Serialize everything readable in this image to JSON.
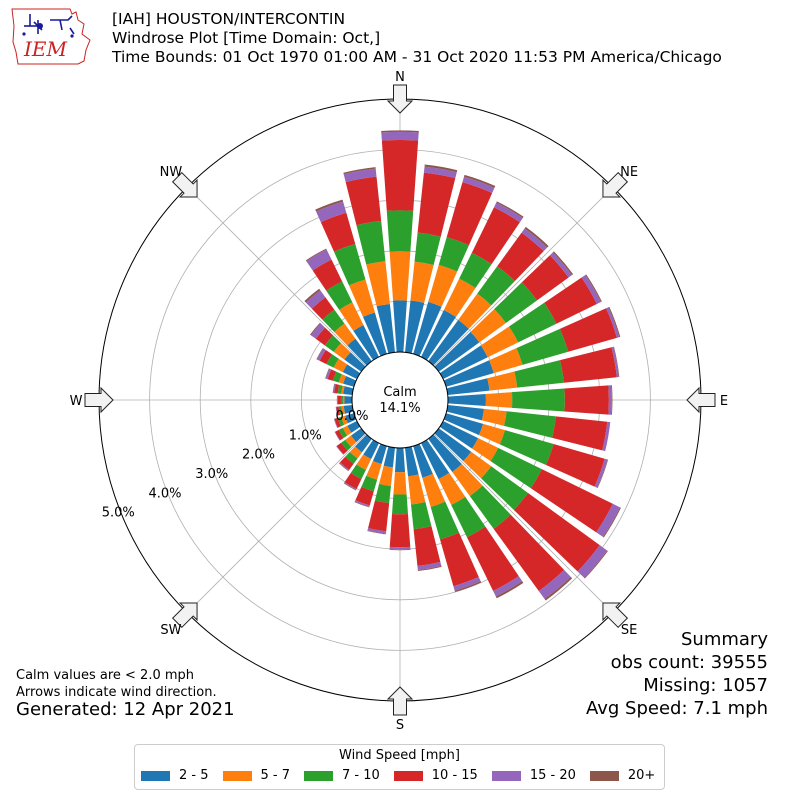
{
  "logo": {
    "text": "IEM"
  },
  "header": {
    "line1": "[IAH] HOUSTON/INTERCONTIN",
    "line2": "Windrose Plot [Time Domain: Oct,]",
    "line3": "Time Bounds: 01 Oct 1970 01:00 AM - 31 Oct 2020 11:53 PM America/Chicago"
  },
  "notes": {
    "calm_note": "Calm values are < 2.0 mph",
    "arrow_note": "Arrows indicate wind direction.",
    "generated": "Generated: 12 Apr 2021"
  },
  "summary": {
    "title": "Summary",
    "obs_count": "obs count: 39555",
    "missing": "Missing: 1057",
    "avg_speed": "Avg Speed: 7.1 mph"
  },
  "colors": {
    "bins": [
      "#1f77b4",
      "#ff7f0e",
      "#2ca02c",
      "#d62728",
      "#9467bd",
      "#8c564b"
    ],
    "grid": "#b0b0b0",
    "arrow_fill": "#f2f2f2"
  },
  "chart_data": {
    "type": "windrose",
    "calm": {
      "label": "Calm",
      "value": "14.1%"
    },
    "directions": [
      "N",
      "NE",
      "E",
      "SE",
      "S",
      "SW",
      "W",
      "NW"
    ],
    "radial_ticks": [
      "0.0%",
      "1.0%",
      "2.0%",
      "3.0%",
      "4.0%",
      "5.0%"
    ],
    "r_max": 5.0,
    "legend": {
      "title": "Wind Speed [mph]",
      "bins": [
        "2 - 5",
        "5 - 7",
        "7 - 10",
        "10 - 15",
        "15 - 20",
        "20+"
      ]
    },
    "sector_angles_deg": [
      0,
      10,
      20,
      30,
      40,
      50,
      60,
      70,
      80,
      90,
      100,
      110,
      120,
      130,
      140,
      150,
      160,
      170,
      180,
      190,
      200,
      210,
      220,
      230,
      240,
      250,
      260,
      270,
      280,
      290,
      300,
      310,
      320,
      330,
      340,
      350
    ],
    "cumulative_pct": [
      [
        1.02,
        1.99,
        2.8,
        4.19,
        4.35,
        4.38
      ],
      [
        1.03,
        1.8,
        2.38,
        3.57,
        3.69,
        3.73
      ],
      [
        1.07,
        1.83,
        2.4,
        3.53,
        3.64,
        3.68
      ],
      [
        1.03,
        1.72,
        2.29,
        3.29,
        3.39,
        3.42
      ],
      [
        1.01,
        1.65,
        2.32,
        3.14,
        3.24,
        3.28
      ],
      [
        0.99,
        1.64,
        2.4,
        3.17,
        3.25,
        3.28
      ],
      [
        0.98,
        1.65,
        2.49,
        3.38,
        3.47,
        3.49
      ],
      [
        0.98,
        1.57,
        2.51,
        3.51,
        3.56,
        3.58
      ],
      [
        0.83,
        1.38,
        2.31,
        3.36,
        3.4,
        3.41
      ],
      [
        0.75,
        1.27,
        2.31,
        3.18,
        3.24,
        3.25
      ],
      [
        0.72,
        1.17,
        2.15,
        3.17,
        3.23,
        3.23
      ],
      [
        0.76,
        1.21,
        2.21,
        3.26,
        3.32,
        3.33
      ],
      [
        0.77,
        1.21,
        2.17,
        3.73,
        3.89,
        3.91
      ],
      [
        0.79,
        1.28,
        2.18,
        3.93,
        4.11,
        4.13
      ],
      [
        0.81,
        1.4,
        2.2,
        3.72,
        3.91,
        3.95
      ],
      [
        0.79,
        1.36,
        2.07,
        3.25,
        3.37,
        3.41
      ],
      [
        0.65,
        1.25,
        1.92,
        2.88,
        2.97,
        3.0
      ],
      [
        0.57,
        1.13,
        1.62,
        2.35,
        2.43,
        2.45
      ],
      [
        0.48,
        0.92,
        1.31,
        1.96,
        2.01,
        2.02
      ],
      [
        0.39,
        0.76,
        1.1,
        1.66,
        1.71,
        1.72
      ],
      [
        0.37,
        0.69,
        0.93,
        1.22,
        1.25,
        1.26
      ],
      [
        0.35,
        0.59,
        0.79,
        1.01,
        1.03,
        1.04
      ],
      [
        0.33,
        0.48,
        0.61,
        0.76,
        0.78,
        0.79
      ],
      [
        0.25,
        0.39,
        0.49,
        0.6,
        0.61,
        0.61
      ],
      [
        0.21,
        0.31,
        0.4,
        0.48,
        0.49,
        0.49
      ],
      [
        0.18,
        0.26,
        0.33,
        0.4,
        0.41,
        0.41
      ],
      [
        0.17,
        0.22,
        0.27,
        0.32,
        0.33,
        0.33
      ],
      [
        0.15,
        0.18,
        0.22,
        0.28,
        0.29,
        0.3
      ],
      [
        0.18,
        0.22,
        0.29,
        0.36,
        0.38,
        0.39
      ],
      [
        0.22,
        0.31,
        0.43,
        0.54,
        0.58,
        0.59
      ],
      [
        0.31,
        0.51,
        0.67,
        0.82,
        0.88,
        0.89
      ],
      [
        0.41,
        0.67,
        0.89,
        1.11,
        1.23,
        1.25
      ],
      [
        0.55,
        0.92,
        1.26,
        1.56,
        1.73,
        1.77
      ],
      [
        0.7,
        1.2,
        1.66,
        2.14,
        2.36,
        2.38
      ],
      [
        0.85,
        1.53,
        2.26,
        2.9,
        3.13,
        3.17
      ],
      [
        0.96,
        1.81,
        2.61,
        3.49,
        3.65,
        3.68
      ]
    ]
  }
}
